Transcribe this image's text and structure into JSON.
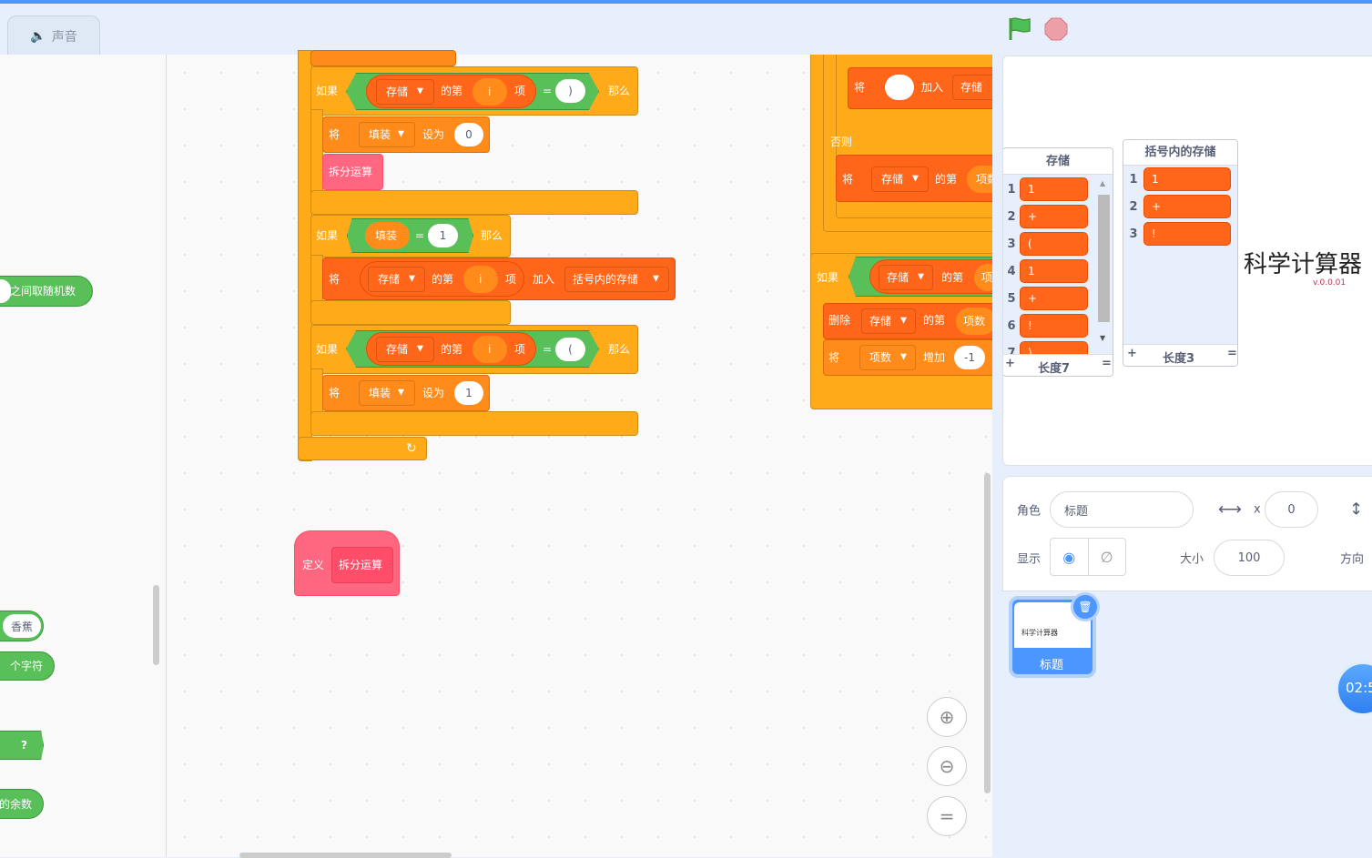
{
  "tabs": {
    "sound": "声音",
    "sound_icon": "speaker-icon"
  },
  "top": {
    "flag_icon": "green-flag-icon",
    "stop_icon": "stop-icon",
    "accent": "#4c97ff"
  },
  "palette": {
    "random": "之间取随机数",
    "banana": "香蕉",
    "chars": "个字符",
    "question": "?",
    "mod": "的余数"
  },
  "kw": {
    "if": "如果",
    "then": "那么",
    "set": "将",
    "set_to": "设为",
    "of_item": "的第",
    "item": "项",
    "add_to": "加入",
    "else": "否则",
    "delete": "删除",
    "change_by": "增加",
    "define": "定义"
  },
  "vars": {
    "storage": "存储",
    "fill": "填装",
    "paren_storage": "括号内的存储",
    "count": "项数",
    "i": "i",
    "split": "拆分运算"
  },
  "vals": {
    "close_paren": ")",
    "open_paren": "(",
    "zero": "0",
    "one": "1",
    "neg_one": "-1"
  },
  "colors": {
    "control": "#FFAB19",
    "variable": "#FF8C1A",
    "list": "#FF661A",
    "operator": "#59C059",
    "custom": "#FF6680"
  },
  "stage": {
    "title": "科学计算器",
    "version": "v.0.0.01",
    "list1": {
      "name": "存储",
      "items": [
        "1",
        "+",
        "(",
        "1",
        "+",
        "!",
        ")"
      ],
      "length": "长度7",
      "add": "+",
      "resize": "="
    },
    "list2": {
      "name": "括号内的存储",
      "items": [
        "1",
        "+",
        "!"
      ],
      "length": "长度3",
      "add": "+",
      "resize": "="
    }
  },
  "sprite": {
    "label": "角色",
    "name": "标题",
    "x_label": "x",
    "x": "0",
    "show_label": "显示",
    "size_label": "大小",
    "size": "100",
    "direction_label": "方向",
    "tile_name": "标题",
    "tile_thumb": "科学计算器"
  },
  "timer": "02:5"
}
